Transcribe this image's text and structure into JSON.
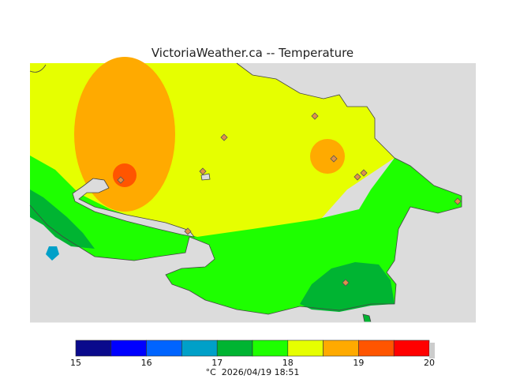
{
  "title": "VictoriaWeather.ca -- Temperature",
  "colors": {
    "water": "#dcdcdc",
    "land_outline": "#444444",
    "station_fill": "#e0904a",
    "station_stroke": "#555555"
  },
  "legend": {
    "bins": [
      {
        "from": 15.0,
        "to": 15.5,
        "color": "#0a0a8c"
      },
      {
        "from": 15.5,
        "to": 16.0,
        "color": "#0000ff"
      },
      {
        "from": 16.0,
        "to": 16.5,
        "color": "#0064ff"
      },
      {
        "from": 16.5,
        "to": 17.0,
        "color": "#00a0c8"
      },
      {
        "from": 17.0,
        "to": 17.5,
        "color": "#00b432"
      },
      {
        "from": 17.5,
        "to": 18.0,
        "color": "#1eff00"
      },
      {
        "from": 18.0,
        "to": 18.5,
        "color": "#e6ff00"
      },
      {
        "from": 18.5,
        "to": 19.0,
        "color": "#ffaa00"
      },
      {
        "from": 19.0,
        "to": 19.5,
        "color": "#ff5500"
      },
      {
        "from": 19.5,
        "to": 20.0,
        "color": "#ff0000"
      }
    ],
    "tick_labels": [
      "15",
      "16",
      "17",
      "18",
      "19",
      "20"
    ],
    "unit": "°C",
    "timestamp": "2026/04/19 18:51"
  }
}
